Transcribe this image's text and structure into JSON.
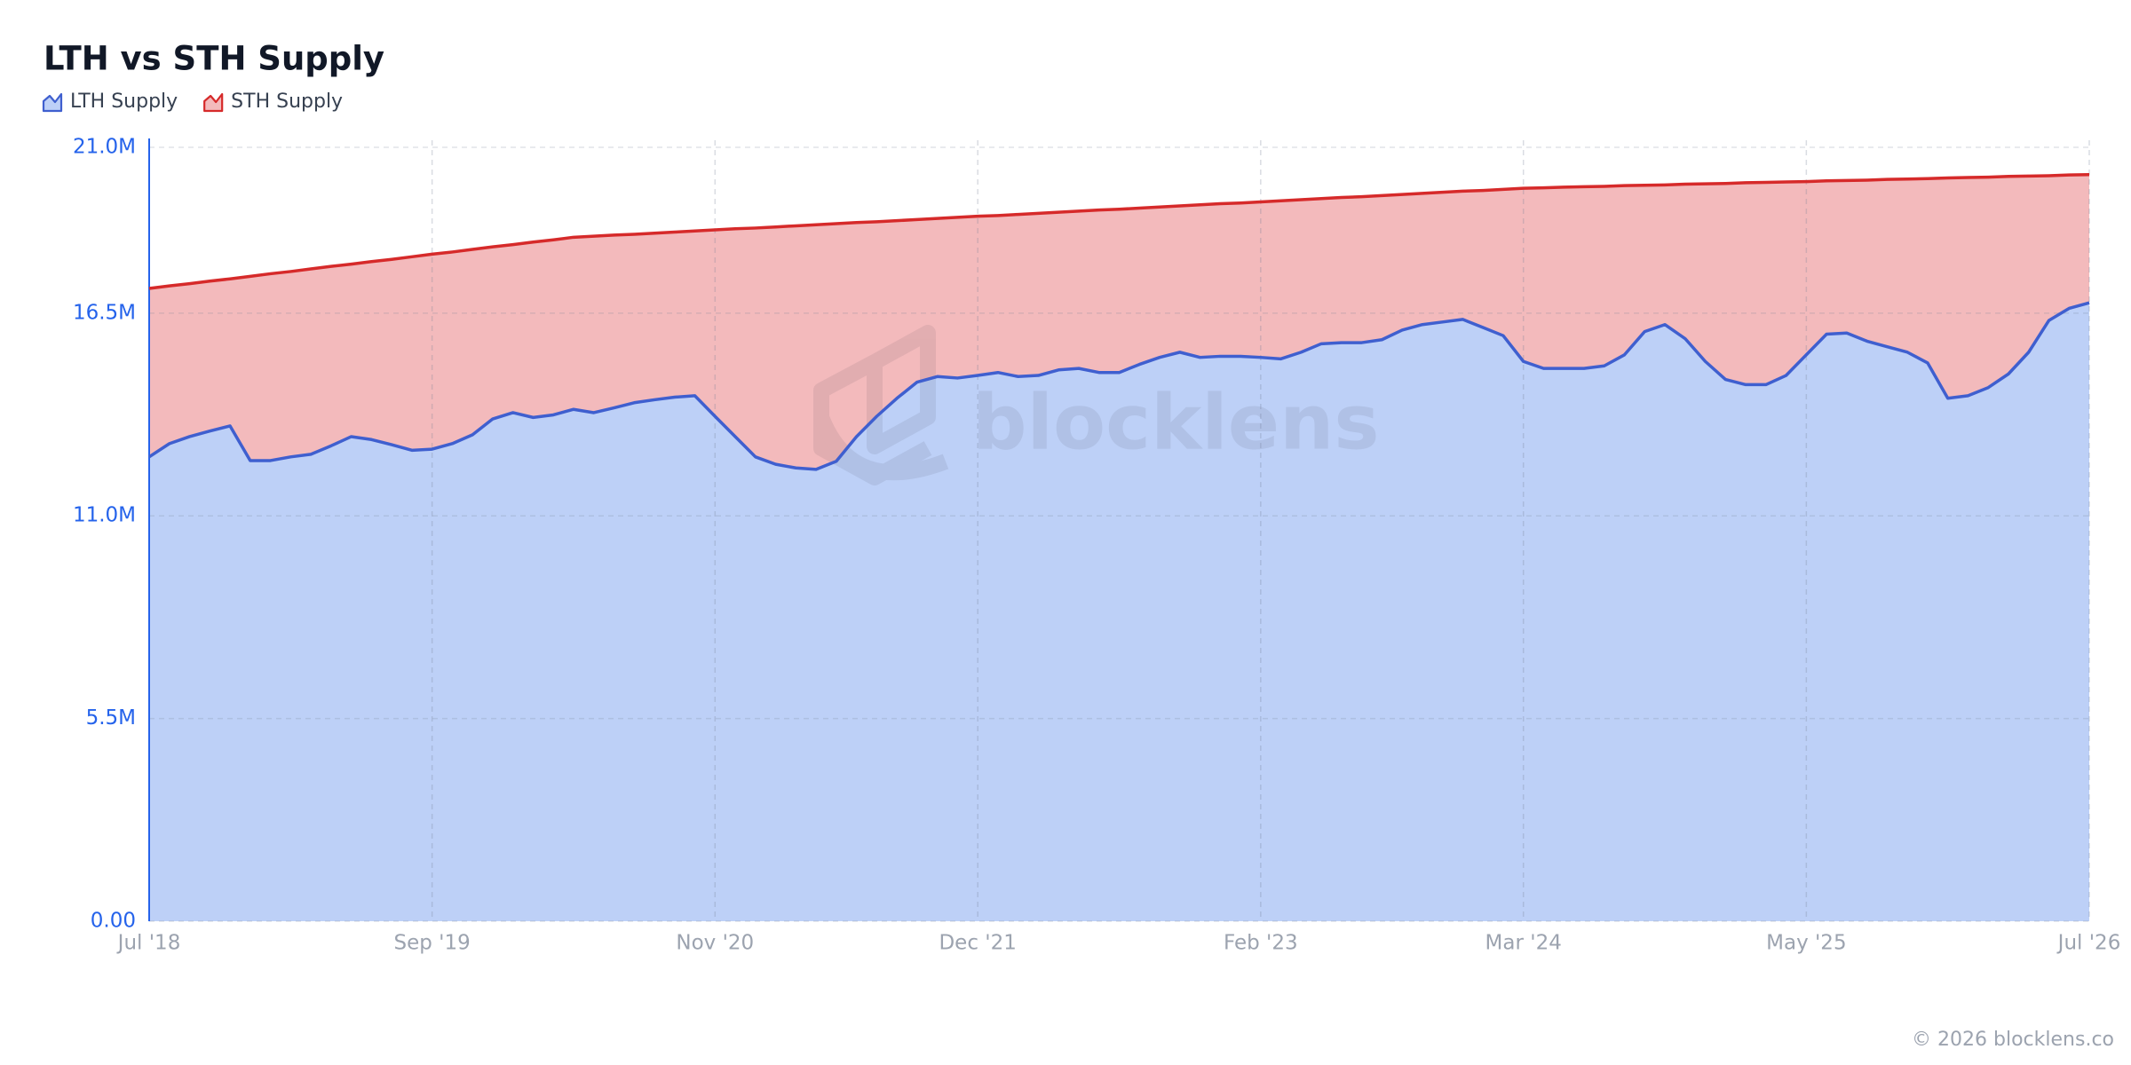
{
  "chart_data": {
    "type": "stacked-area",
    "title": "LTH vs STH Supply",
    "x": [
      "2018-07",
      "2018-08",
      "2018-09",
      "2018-10",
      "2018-11",
      "2018-12",
      "2019-01",
      "2019-02",
      "2019-03",
      "2019-04",
      "2019-05",
      "2019-06",
      "2019-07",
      "2019-08",
      "2019-09",
      "2019-10",
      "2019-11",
      "2019-12",
      "2020-01",
      "2020-02",
      "2020-03",
      "2020-04",
      "2020-05",
      "2020-06",
      "2020-07",
      "2020-08",
      "2020-09",
      "2020-10",
      "2020-11",
      "2020-12",
      "2021-01",
      "2021-02",
      "2021-03",
      "2021-04",
      "2021-05",
      "2021-06",
      "2021-07",
      "2021-08",
      "2021-09",
      "2021-10",
      "2021-11",
      "2021-12",
      "2022-01",
      "2022-02",
      "2022-03",
      "2022-04",
      "2022-05",
      "2022-06",
      "2022-07",
      "2022-08",
      "2022-09",
      "2022-10",
      "2022-11",
      "2022-12",
      "2023-01",
      "2023-02",
      "2023-03",
      "2023-04",
      "2023-05",
      "2023-06",
      "2023-07",
      "2023-08",
      "2023-09",
      "2023-10",
      "2023-11",
      "2023-12",
      "2024-01",
      "2024-02",
      "2024-03",
      "2024-04",
      "2024-05",
      "2024-06",
      "2024-07",
      "2024-08",
      "2024-09",
      "2024-10",
      "2024-11",
      "2024-12",
      "2025-01",
      "2025-02",
      "2025-03",
      "2025-04",
      "2025-05",
      "2025-06",
      "2025-07",
      "2025-08",
      "2025-09",
      "2025-10",
      "2025-11",
      "2025-12",
      "2026-01",
      "2026-02",
      "2026-03",
      "2026-04",
      "2026-05",
      "2026-06",
      "2026-07"
    ],
    "series": [
      {
        "name": "LTH Supply",
        "color": "#3f5fcf",
        "fill": "#bdd0f7",
        "values": [
          12.6,
          12.96,
          13.15,
          13.3,
          13.44,
          12.5,
          12.5,
          12.6,
          12.67,
          12.9,
          13.15,
          13.07,
          12.93,
          12.78,
          12.81,
          12.96,
          13.2,
          13.63,
          13.8,
          13.67,
          13.74,
          13.89,
          13.8,
          13.93,
          14.07,
          14.15,
          14.22,
          14.26,
          13.7,
          13.15,
          12.6,
          12.4,
          12.3,
          12.26,
          12.48,
          13.15,
          13.7,
          14.19,
          14.63,
          14.78,
          14.74,
          14.81,
          14.89,
          14.78,
          14.81,
          14.96,
          15.0,
          14.89,
          14.89,
          15.11,
          15.3,
          15.44,
          15.3,
          15.33,
          15.33,
          15.3,
          15.26,
          15.44,
          15.67,
          15.7,
          15.7,
          15.78,
          16.04,
          16.19,
          16.26,
          16.33,
          16.11,
          15.89,
          15.19,
          15.0,
          15.0,
          15.0,
          15.07,
          15.37,
          16.0,
          16.19,
          15.81,
          15.19,
          14.7,
          14.56,
          14.56,
          14.81,
          15.37,
          15.93,
          15.96,
          15.74,
          15.59,
          15.44,
          15.15,
          14.19,
          14.26,
          14.48,
          14.85,
          15.44,
          16.3,
          16.63,
          16.78
        ]
      },
      {
        "name": "STH Supply",
        "color": "#d62a2a",
        "fill": "#f3babc",
        "values": [
          4.57,
          4.28,
          4.15,
          4.07,
          3.99,
          5.0,
          5.07,
          5.03,
          5.03,
          4.87,
          4.68,
          4.83,
          5.03,
          5.25,
          5.29,
          5.2,
          5.03,
          4.67,
          4.56,
          4.76,
          4.75,
          4.67,
          4.79,
          4.69,
          4.57,
          4.52,
          4.48,
          4.47,
          5.06,
          5.64,
          6.21,
          6.44,
          6.57,
          6.64,
          6.45,
          5.81,
          5.28,
          4.82,
          4.41,
          4.29,
          4.36,
          4.32,
          4.26,
          4.4,
          4.4,
          4.28,
          4.27,
          4.41,
          4.43,
          4.24,
          4.08,
          3.97,
          4.14,
          4.14,
          4.16,
          4.22,
          4.29,
          4.14,
          3.94,
          3.94,
          3.96,
          3.91,
          3.68,
          3.56,
          3.52,
          3.48,
          3.72,
          3.97,
          4.7,
          4.9,
          4.92,
          4.93,
          4.87,
          4.59,
          3.97,
          3.79,
          4.19,
          4.82,
          5.32,
          5.48,
          5.49,
          5.25,
          4.7,
          4.16,
          4.14,
          4.37,
          4.54,
          4.7,
          5.0,
          5.98,
          5.92,
          5.71,
          5.36,
          4.78,
          3.93,
          3.62,
          3.48
        ]
      }
    ],
    "xlim": [
      "2018-07",
      "2026-07"
    ],
    "xticks": [
      {
        "value": "2018-07",
        "label": "Jul '18"
      },
      {
        "value": "2019-09",
        "label": "Sep '19"
      },
      {
        "value": "2020-11",
        "label": "Nov '20"
      },
      {
        "value": "2021-12",
        "label": "Dec '21"
      },
      {
        "value": "2023-02",
        "label": "Feb '23"
      },
      {
        "value": "2024-03",
        "label": "Mar '24"
      },
      {
        "value": "2025-05",
        "label": "May '25"
      },
      {
        "value": "2026-07",
        "label": "Jul '26"
      }
    ],
    "ylim": [
      0,
      21
    ],
    "yticks": [
      {
        "value": 0,
        "label": "0.00"
      },
      {
        "value": 5.5,
        "label": "5.5M"
      },
      {
        "value": 11,
        "label": "11.0M"
      },
      {
        "value": 16.5,
        "label": "16.5M"
      },
      {
        "value": 21,
        "label": "21.0M"
      }
    ],
    "grid": true,
    "legend": "top-left"
  },
  "watermark": "blocklens",
  "footer": "© 2026 blocklens.co"
}
